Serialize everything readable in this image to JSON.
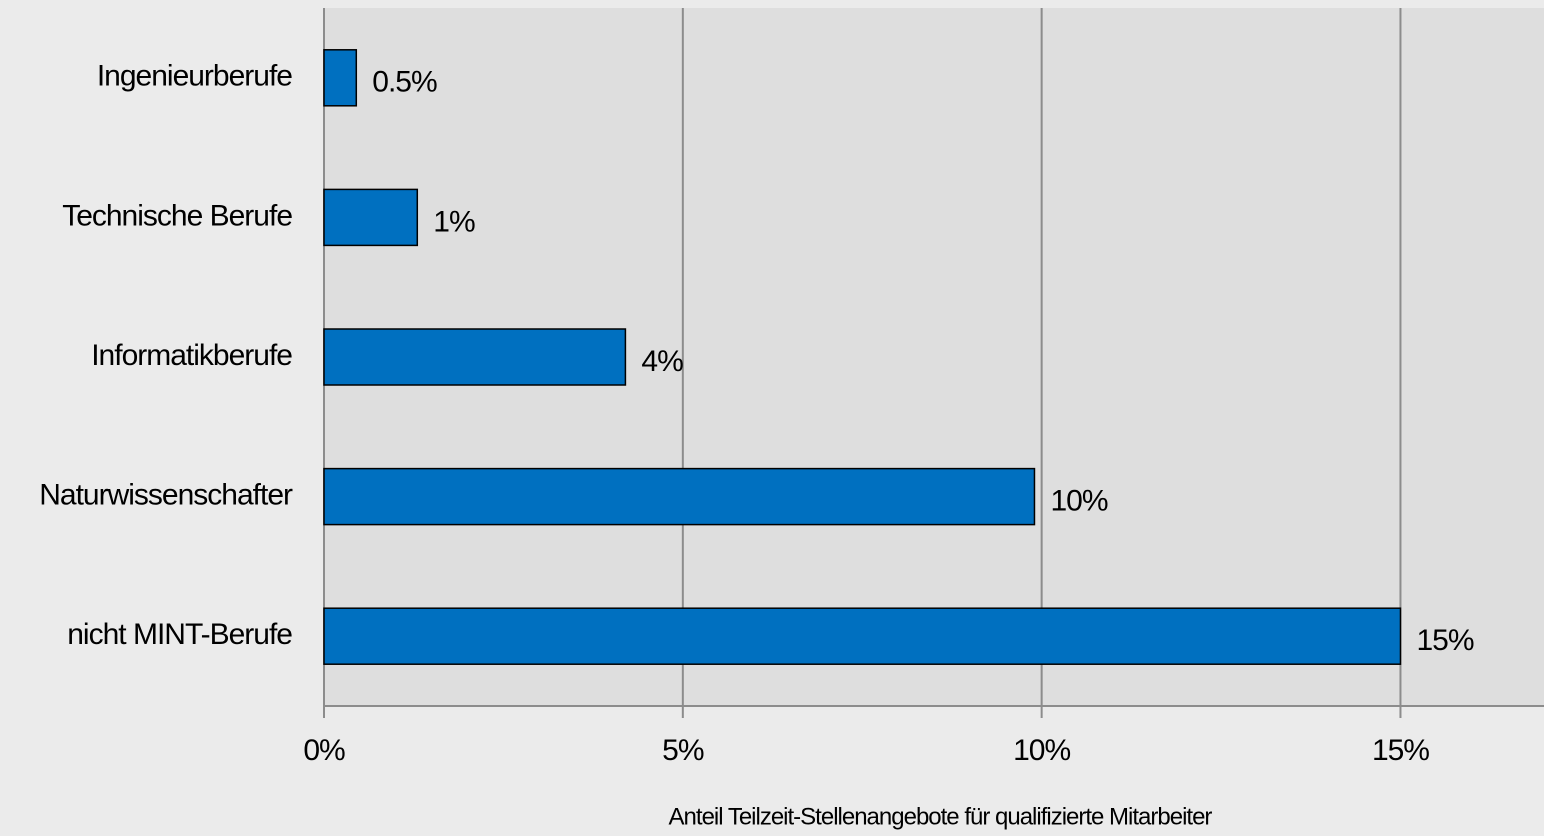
{
  "chart_data": {
    "type": "bar",
    "orientation": "horizontal",
    "x_label": "Anteil Teilzeit-Stellenangebote für qualifizierte Mitarbeiter",
    "categories": [
      "Ingenieurberufe",
      "Technische Berufe",
      "Informatikberufe",
      "Naturwissenschafter",
      "nicht MINT-Berufe"
    ],
    "values": [
      0.45,
      1.3,
      4.2,
      9.9,
      15.0
    ],
    "value_labels": [
      "0.5%",
      "1%",
      "4%",
      "10%",
      "15%"
    ],
    "color": "#0070c0",
    "xlim": [
      0,
      17
    ],
    "xticks": [
      {
        "value": 0,
        "label": "0%"
      },
      {
        "value": 5,
        "label": "5%"
      },
      {
        "value": 10,
        "label": "10%"
      },
      {
        "value": 15,
        "label": "15%"
      }
    ],
    "grid": true
  }
}
